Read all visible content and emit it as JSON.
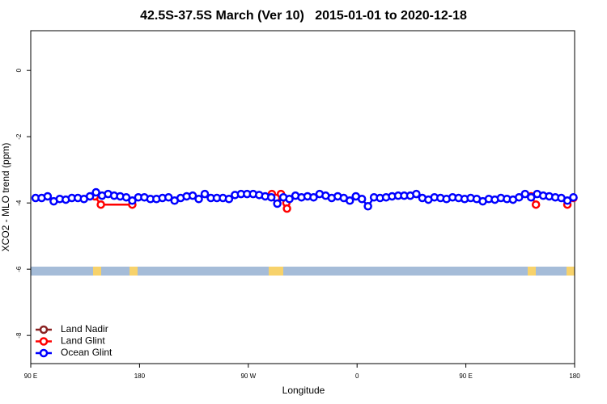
{
  "chart_data": {
    "type": "line_points",
    "title": "42.5S-37.5S March (Ver 10)   2015-01-01 to 2020-12-18",
    "x_label": "Longitude",
    "y_label": "XCO2 - MLO trend (ppm)",
    "xlim": [
      90,
      540
    ],
    "xticks": [
      {
        "value": 90,
        "label": "90 E"
      },
      180,
      {
        "value": 270,
        "label": "90 W"
      },
      {
        "value": 360,
        "label": "0"
      },
      {
        "value": 450,
        "label": "90 E"
      },
      {
        "value": 540,
        "label": "180"
      }
    ],
    "ylim": [
      -8.85,
      1.2
    ],
    "yticks": [
      0,
      -2,
      -4,
      -6,
      -8
    ],
    "legend": "bottom-left",
    "series": [
      {
        "name": "Land Nadir",
        "color": "#8b2323",
        "x": [],
        "values": []
      },
      {
        "name": "Land Glint",
        "color": "#ff0000",
        "x": [
          143,
          148,
          174,
          null,
          289.5,
          293,
          297,
          301.5,
          302,
          null,
          504,
          508,
          null,
          534,
          539
        ],
        "values": [
          -3.8,
          -4.05,
          -4.05,
          null,
          -3.73,
          -3.85,
          -3.73,
          -4.0,
          -4.17,
          null,
          -3.8,
          -4.05,
          null,
          -4.05,
          -3.85
        ]
      },
      {
        "name": "Ocean Glint",
        "color": "#0000ff",
        "x": [
          94,
          99,
          104,
          109,
          114,
          119,
          124,
          129,
          134,
          139,
          144,
          149,
          154,
          159,
          164,
          169,
          174,
          179,
          184,
          189,
          194,
          199,
          204,
          209,
          214,
          219,
          224,
          229,
          234,
          239,
          244,
          249,
          254,
          259,
          264,
          269,
          274,
          279,
          284,
          289,
          294,
          299,
          304,
          309,
          314,
          319,
          324,
          329,
          334,
          339,
          344,
          349,
          354,
          359,
          364,
          369,
          374,
          379,
          384,
          389,
          394,
          399,
          404,
          409,
          414,
          419,
          424,
          429,
          434,
          439,
          444,
          449,
          454,
          459,
          464,
          469,
          474,
          479,
          484,
          489,
          494,
          499,
          504,
          509,
          514,
          519,
          524,
          529,
          534,
          539
        ],
        "values": [
          -3.85,
          -3.85,
          -3.8,
          -3.95,
          -3.88,
          -3.9,
          -3.85,
          -3.85,
          -3.88,
          -3.8,
          -3.68,
          -3.78,
          -3.73,
          -3.78,
          -3.8,
          -3.83,
          -3.93,
          -3.83,
          -3.83,
          -3.88,
          -3.88,
          -3.85,
          -3.83,
          -3.93,
          -3.85,
          -3.8,
          -3.78,
          -3.88,
          -3.73,
          -3.85,
          -3.85,
          -3.85,
          -3.88,
          -3.76,
          -3.73,
          -3.73,
          -3.73,
          -3.76,
          -3.8,
          -3.83,
          -4.02,
          -3.83,
          -3.88,
          -3.78,
          -3.83,
          -3.8,
          -3.83,
          -3.73,
          -3.78,
          -3.85,
          -3.8,
          -3.85,
          -3.93,
          -3.8,
          -3.88,
          -4.1,
          -3.83,
          -3.85,
          -3.83,
          -3.8,
          -3.78,
          -3.78,
          -3.78,
          -3.73,
          -3.85,
          -3.9,
          -3.83,
          -3.85,
          -3.88,
          -3.83,
          -3.85,
          -3.88,
          -3.85,
          -3.88,
          -3.95,
          -3.88,
          -3.9,
          -3.85,
          -3.88,
          -3.9,
          -3.83,
          -3.73,
          -3.83,
          -3.73,
          -3.78,
          -3.8,
          -3.83,
          -3.85,
          -3.93,
          -3.83
        ]
      }
    ]
  }
}
